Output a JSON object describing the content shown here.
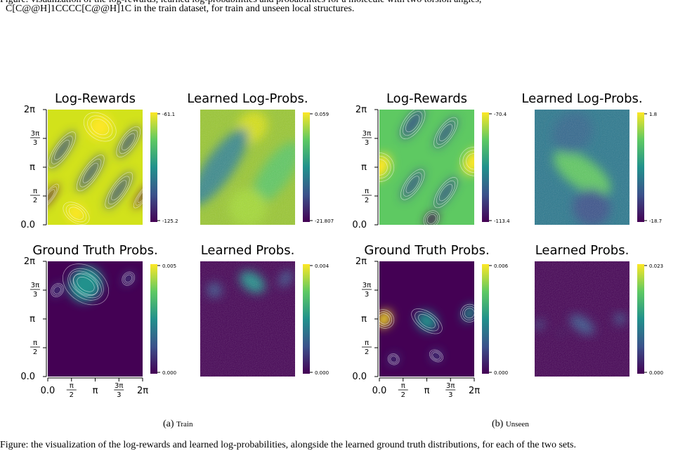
{
  "caption_top": {
    "line1": "Figure: visualization of the log-rewards, learned log-probabilities and probabilities for a molecule with two torsion angles,",
    "line2": "C[C@@H]1CCCC[C@@H]1C in the train dataset, for train and unseen local structures."
  },
  "caption_bottom": "Figure: the visualization of the log-rewards and learned log-probabilities, alongside the learned ground truth distributions, for each of the two sets.",
  "panels": [
    {
      "id": "a",
      "label": "(a)",
      "label_small": "Train"
    },
    {
      "id": "b",
      "label": "(b)",
      "label_small": "Unseen"
    }
  ],
  "axis_ticks": {
    "y": [
      "2π",
      "3π/3",
      "π",
      "π/2",
      "0.0"
    ],
    "x": [
      "0.0",
      "π/2",
      "π",
      "3π/3",
      "2π"
    ]
  },
  "colors": {
    "viridis_low": "#440154",
    "viridis_mid": "#21918c",
    "viridis_high": "#fde725",
    "contour": "#ffffff"
  },
  "chart_data": [
    {
      "type": "heatmap",
      "panel": "a",
      "title": "Log-Rewards",
      "colorbar_max": "-61.1",
      "colorbar_min": "-125.2"
    },
    {
      "type": "heatmap",
      "panel": "a",
      "title": "Learned Log-Probs.",
      "colorbar_max": "0.059",
      "colorbar_min": "-21.807"
    },
    {
      "type": "heatmap",
      "panel": "a",
      "title": "Ground Truth Probs.",
      "colorbar_max": "0.005",
      "colorbar_min": "0.000"
    },
    {
      "type": "heatmap",
      "panel": "a",
      "title": "Learned Probs.",
      "colorbar_max": "0.004",
      "colorbar_min": "0.000"
    },
    {
      "type": "heatmap",
      "panel": "b",
      "title": "Log-Rewards",
      "colorbar_max": "-70.4",
      "colorbar_min": "-113.4"
    },
    {
      "type": "heatmap",
      "panel": "b",
      "title": "Learned Log-Probs.",
      "colorbar_max": "1.8",
      "colorbar_min": "-18.7"
    },
    {
      "type": "heatmap",
      "panel": "b",
      "title": "Ground Truth Probs.",
      "colorbar_max": "0.006",
      "colorbar_min": "0.000"
    },
    {
      "type": "heatmap",
      "panel": "b",
      "title": "Learned Probs.",
      "colorbar_max": "0.023",
      "colorbar_min": "0.000"
    }
  ]
}
